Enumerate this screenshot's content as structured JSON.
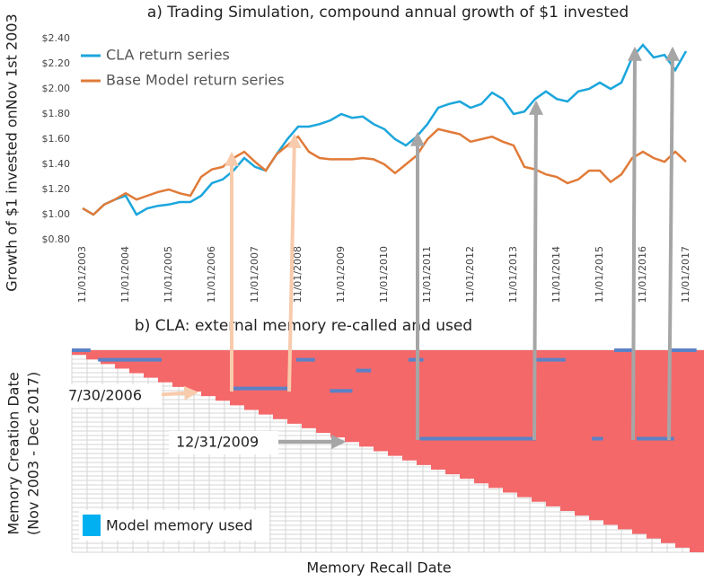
{
  "chart_data": [
    {
      "type": "line",
      "title": "a) Trading Simulation, compound annual growth of $1 invested",
      "y_label": "Growth of $1 invested onNov 1st 2003",
      "x": [
        "2003-11",
        "2004-02",
        "2004-05",
        "2004-08",
        "2004-11",
        "2005-02",
        "2005-05",
        "2005-08",
        "2005-11",
        "2006-02",
        "2006-05",
        "2006-08",
        "2006-11",
        "2007-02",
        "2007-05",
        "2007-08",
        "2007-11",
        "2008-02",
        "2008-05",
        "2008-08",
        "2008-11",
        "2009-02",
        "2009-05",
        "2009-08",
        "2009-11",
        "2010-02",
        "2010-05",
        "2010-08",
        "2010-11",
        "2011-02",
        "2011-05",
        "2011-08",
        "2011-11",
        "2012-02",
        "2012-05",
        "2012-08",
        "2012-11",
        "2013-02",
        "2013-05",
        "2013-08",
        "2013-11",
        "2014-02",
        "2014-05",
        "2014-08",
        "2014-11",
        "2015-02",
        "2015-05",
        "2015-08",
        "2015-11",
        "2016-02",
        "2016-05",
        "2016-08",
        "2016-11",
        "2017-02",
        "2017-05",
        "2017-08",
        "2017-11"
      ],
      "series": [
        {
          "name": "CLA return series",
          "color": "#1ba6dc",
          "values": [
            1.05,
            1.0,
            1.08,
            1.12,
            1.15,
            1.0,
            1.05,
            1.07,
            1.08,
            1.1,
            1.1,
            1.15,
            1.25,
            1.28,
            1.35,
            1.45,
            1.38,
            1.35,
            1.48,
            1.6,
            1.7,
            1.7,
            1.72,
            1.75,
            1.8,
            1.77,
            1.78,
            1.72,
            1.68,
            1.6,
            1.55,
            1.62,
            1.72,
            1.85,
            1.88,
            1.9,
            1.85,
            1.88,
            1.97,
            1.92,
            1.8,
            1.82,
            1.92,
            1.98,
            1.92,
            1.9,
            1.98,
            2.0,
            2.05,
            2.0,
            2.05,
            2.25,
            2.35,
            2.25,
            2.27,
            2.15,
            2.3
          ]
        },
        {
          "name": "Base Model return series",
          "color": "#e07b39",
          "values": [
            1.05,
            1.0,
            1.08,
            1.12,
            1.17,
            1.12,
            1.15,
            1.18,
            1.2,
            1.17,
            1.15,
            1.3,
            1.36,
            1.38,
            1.45,
            1.5,
            1.42,
            1.35,
            1.48,
            1.55,
            1.62,
            1.5,
            1.45,
            1.44,
            1.44,
            1.44,
            1.45,
            1.44,
            1.4,
            1.33,
            1.4,
            1.47,
            1.6,
            1.68,
            1.66,
            1.64,
            1.58,
            1.6,
            1.62,
            1.58,
            1.55,
            1.38,
            1.36,
            1.32,
            1.3,
            1.25,
            1.28,
            1.35,
            1.35,
            1.26,
            1.32,
            1.45,
            1.5,
            1.45,
            1.42,
            1.5,
            1.42
          ]
        }
      ],
      "xlim": [
        "2003-10",
        "2017-12"
      ],
      "xticks": [
        {
          "value": "2003-11",
          "label": "11/01/2003"
        },
        {
          "value": "2004-11",
          "label": "11/01/2004"
        },
        {
          "value": "2005-11",
          "label": "11/01/2005"
        },
        {
          "value": "2006-11",
          "label": "11/01/2006"
        },
        {
          "value": "2007-11",
          "label": "11/01/2007"
        },
        {
          "value": "2008-11",
          "label": "11/01/2008"
        },
        {
          "value": "2009-11",
          "label": "11/01/2009"
        },
        {
          "value": "2010-11",
          "label": "11/01/2010"
        },
        {
          "value": "2011-11",
          "label": "11/01/2011"
        },
        {
          "value": "2012-11",
          "label": "11/01/2012"
        },
        {
          "value": "2013-11",
          "label": "11/01/2013"
        },
        {
          "value": "2014-11",
          "label": "11/01/2014"
        },
        {
          "value": "2015-11",
          "label": "11/01/2015"
        },
        {
          "value": "2016-11",
          "label": "11/01/2016"
        },
        {
          "value": "2017-11",
          "label": "11/01/2017"
        }
      ],
      "ylim": [
        0.8,
        2.4
      ],
      "yticks": [
        {
          "value": 0.8,
          "label": "$0.80"
        },
        {
          "value": 1.0,
          "label": "$1.00"
        },
        {
          "value": 1.2,
          "label": "$1.20"
        },
        {
          "value": 1.4,
          "label": "$1.40"
        },
        {
          "value": 1.6,
          "label": "$1.60"
        },
        {
          "value": 1.8,
          "label": "$1.80"
        },
        {
          "value": 2.0,
          "label": "$2.00"
        },
        {
          "value": 2.2,
          "label": "$2.20"
        },
        {
          "value": 2.4,
          "label": "$2.40"
        }
      ],
      "legend": "upper left"
    },
    {
      "type": "memory",
      "title": "b) CLA: external memory re-called and used",
      "y_label": [
        "Memory Creation Date",
        "(Nov 2003 - Dec 2017)"
      ],
      "x_label": "Memory Recall Date",
      "legend_label": "Model memory used",
      "legend_color": "#00b0f0",
      "color": "#5b82c6",
      "available_color": "#f4686a",
      "annotations": [
        "7/30/2006",
        "12/31/2009"
      ],
      "xlim": [
        "2003-11",
        "2017-12"
      ],
      "ylim": [
        "2003-11",
        "2017-12"
      ],
      "used": [
        {
          "created": "2003-11",
          "from": "2003-11",
          "to": "2004-04"
        },
        {
          "created": "2004-07",
          "from": "2004-06",
          "to": "2005-11"
        },
        {
          "created": "2004-07",
          "from": "2008-11",
          "to": "2009-04"
        },
        {
          "created": "2004-07",
          "from": "2011-05",
          "to": "2011-09"
        },
        {
          "created": "2004-07",
          "from": "2014-03",
          "to": "2014-11"
        },
        {
          "created": "2005-04",
          "from": "2010-03",
          "to": "2010-07"
        },
        {
          "created": "2006-07",
          "from": "2007-06",
          "to": "2008-09"
        },
        {
          "created": "2006-09",
          "from": "2009-08",
          "to": "2010-02"
        },
        {
          "created": "2010-01",
          "from": "2011-08",
          "to": "2014-03"
        },
        {
          "created": "2010-01",
          "from": "2015-06",
          "to": "2015-09"
        },
        {
          "created": "2010-01",
          "from": "2016-06",
          "to": "2017-04"
        },
        {
          "created": "2003-11",
          "from": "2015-12",
          "to": "2016-05"
        },
        {
          "created": "2003-11",
          "from": "2017-03",
          "to": "2017-10"
        }
      ]
    }
  ]
}
